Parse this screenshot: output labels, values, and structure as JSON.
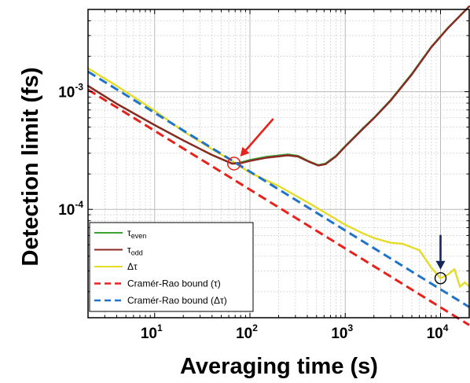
{
  "chart_data": {
    "type": "line",
    "xlabel": "Averaging time (s)",
    "ylabel": "Detection limit (fs)",
    "xscale": "log",
    "yscale": "log",
    "xlim": [
      2,
      20000
    ],
    "ylim": [
      1.2e-05,
      0.005
    ],
    "grid": true,
    "legend_position": "bottom-left",
    "x_ticks": [
      {
        "base": "10",
        "exp": "1",
        "value": 10
      },
      {
        "base": "10",
        "exp": "2",
        "value": 100
      },
      {
        "base": "10",
        "exp": "3",
        "value": 1000
      },
      {
        "base": "10",
        "exp": "4",
        "value": 10000
      }
    ],
    "y_ticks": [
      {
        "base": "10",
        "exp": "-4",
        "value": 0.0001
      },
      {
        "base": "10",
        "exp": "-3",
        "value": 0.001
      }
    ],
    "series": [
      {
        "name": "τ",
        "sub": "even",
        "color": "#3aa535",
        "dash": "solid",
        "points": [
          [
            2,
            0.00112
          ],
          [
            4,
            0.00079
          ],
          [
            10,
            0.00052
          ],
          [
            20,
            0.000385
          ],
          [
            40,
            0.00029
          ],
          [
            65,
            0.000245
          ],
          [
            80,
            0.00025
          ],
          [
            100,
            0.000263
          ],
          [
            150,
            0.00028
          ],
          [
            250,
            0.000293
          ],
          [
            320,
            0.000285
          ],
          [
            420,
            0.000255
          ],
          [
            520,
            0.000238
          ],
          [
            620,
            0.000245
          ],
          [
            800,
            0.000285
          ],
          [
            1000,
            0.000345
          ],
          [
            1500,
            0.00048
          ],
          [
            2000,
            0.0006
          ],
          [
            3000,
            0.00085
          ],
          [
            5000,
            0.00142
          ],
          [
            8000,
            0.0024
          ],
          [
            12000,
            0.0035
          ],
          [
            20000,
            0.0053
          ]
        ]
      },
      {
        "name": "τ",
        "sub": "odd",
        "color": "#8b2a24",
        "dash": "solid",
        "points": [
          [
            2,
            0.00112
          ],
          [
            4,
            0.00079
          ],
          [
            10,
            0.00052
          ],
          [
            20,
            0.000385
          ],
          [
            40,
            0.00029
          ],
          [
            65,
            0.000245
          ],
          [
            80,
            0.000247
          ],
          [
            100,
            0.000258
          ],
          [
            150,
            0.000275
          ],
          [
            250,
            0.000288
          ],
          [
            320,
            0.000281
          ],
          [
            420,
            0.000253
          ],
          [
            520,
            0.000236
          ],
          [
            620,
            0.000242
          ],
          [
            800,
            0.000282
          ],
          [
            1000,
            0.000342
          ],
          [
            1500,
            0.000475
          ],
          [
            2000,
            0.000595
          ],
          [
            3000,
            0.00084
          ],
          [
            5000,
            0.0014
          ],
          [
            8000,
            0.00238
          ],
          [
            12000,
            0.00348
          ],
          [
            20000,
            0.0053
          ]
        ]
      },
      {
        "name": "Δτ",
        "sub": "",
        "color": "#e4dc29",
        "dash": "solid",
        "points": [
          [
            2,
            0.00158
          ],
          [
            4,
            0.00112
          ],
          [
            10,
            0.00069
          ],
          [
            20,
            0.00046
          ],
          [
            40,
            0.000325
          ],
          [
            65,
            0.000258
          ],
          [
            100,
            0.000205
          ],
          [
            200,
            0.000158
          ],
          [
            400,
            0.000115
          ],
          [
            700,
            8.8e-05
          ],
          [
            1000,
            7.4e-05
          ],
          [
            1500,
            6.3e-05
          ],
          [
            2000,
            5.7e-05
          ],
          [
            3000,
            5.2e-05
          ],
          [
            4000,
            5.1e-05
          ],
          [
            6000,
            4.5e-05
          ],
          [
            8000,
            3.2e-05
          ],
          [
            10000,
            2.6e-05
          ],
          [
            12000,
            2.8e-05
          ],
          [
            14000,
            3.1e-05
          ],
          [
            16000,
            2.2e-05
          ],
          [
            18000,
            2.4e-05
          ],
          [
            20000,
            2.2e-05
          ]
        ]
      },
      {
        "name": "Cramér-Rao bound (τ)",
        "sub": "",
        "color": "#e8221b",
        "dash": "dashed",
        "points": [
          [
            2,
            0.00104
          ],
          [
            20000,
            1.04e-05
          ]
        ]
      },
      {
        "name": "Cramér-Rao bound (Δτ)",
        "sub": "",
        "color": "#1f74c9",
        "dash": "dashed",
        "points": [
          [
            2,
            0.00148
          ],
          [
            20000,
            1.48e-05
          ]
        ]
      }
    ],
    "annotations": [
      {
        "type": "circle",
        "x": 68,
        "y": 0.000245,
        "color": "#e8221b"
      },
      {
        "type": "arrow",
        "x": 68,
        "y": 0.000245,
        "color": "#e8221b",
        "from": "upper-right"
      },
      {
        "type": "circle",
        "x": 10000,
        "y": 2.6e-05,
        "color": "#111111"
      },
      {
        "type": "arrow",
        "x": 10000,
        "y": 2.6e-05,
        "color": "#14275a",
        "from": "above"
      }
    ]
  }
}
